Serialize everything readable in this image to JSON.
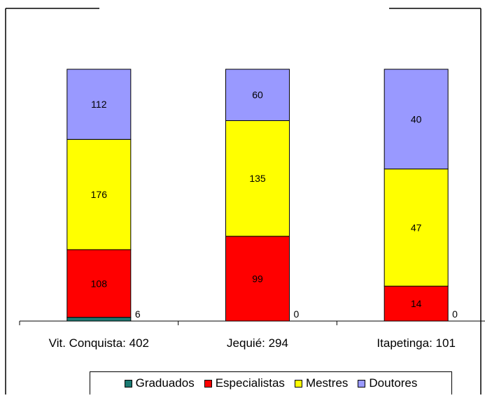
{
  "chart_data": {
    "type": "bar",
    "stacked": true,
    "categories": [
      "Vit. Conquista: 402",
      "Jequié: 294",
      "Itapetinga: 101"
    ],
    "series": [
      {
        "name": "Graduados",
        "color": "#1b7a72",
        "values": [
          6,
          0,
          0
        ]
      },
      {
        "name": "Especialistas",
        "color": "#ff0000",
        "values": [
          108,
          99,
          14
        ]
      },
      {
        "name": "Mestres",
        "color": "#ffff00",
        "values": [
          176,
          135,
          47
        ]
      },
      {
        "name": "Doutores",
        "color": "#9999ff",
        "values": [
          112,
          60,
          40
        ]
      }
    ],
    "normalized": true,
    "legend_position": "bottom",
    "grid": false
  }
}
